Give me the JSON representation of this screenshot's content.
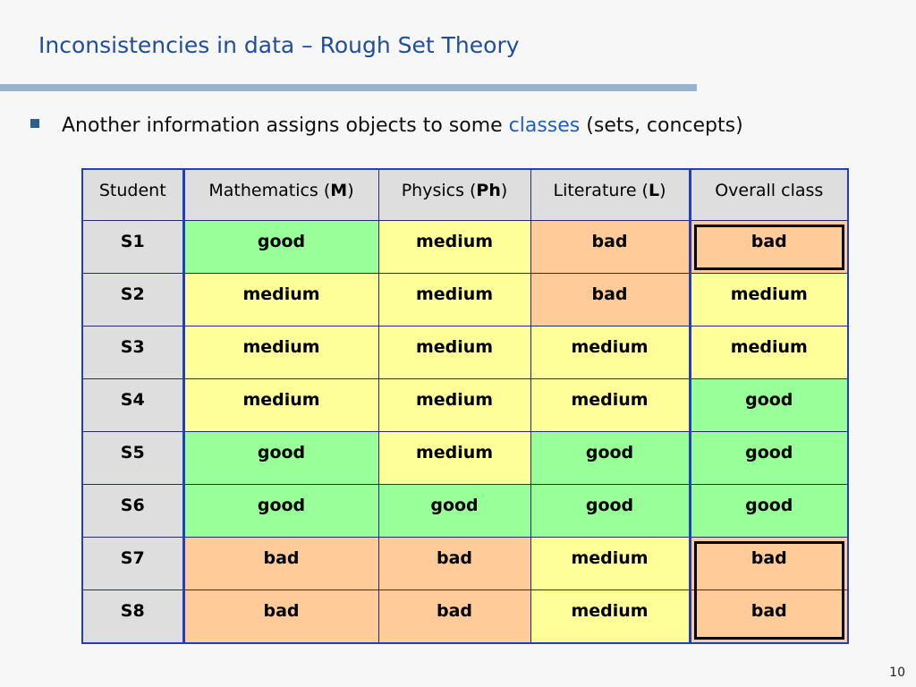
{
  "slide": {
    "title": "Inconsistencies in data – Rough Set Theory",
    "bullet": {
      "before": "Another information assigns objects to some ",
      "highlight": "classes",
      "after": " (sets, concepts)"
    },
    "page_number": "10"
  },
  "table": {
    "headers": [
      {
        "text": "Student"
      },
      {
        "text": "Mathematics (",
        "bold": "M",
        "tail": ")"
      },
      {
        "text": "Physics (",
        "bold": "Ph",
        "tail": ")"
      },
      {
        "text": "Literature (",
        "bold": "L",
        "tail": ")"
      },
      {
        "text": "Overall class"
      }
    ],
    "rows": [
      {
        "student": "S1",
        "values": [
          "good",
          "medium",
          "bad",
          "bad"
        ],
        "boxed": "single"
      },
      {
        "student": "S2",
        "values": [
          "medium",
          "medium",
          "bad",
          "medium"
        ]
      },
      {
        "student": "S3",
        "values": [
          "medium",
          "medium",
          "medium",
          "medium"
        ]
      },
      {
        "student": "S4",
        "values": [
          "medium",
          "medium",
          "medium",
          "good"
        ]
      },
      {
        "student": "S5",
        "values": [
          "good",
          "medium",
          "good",
          "good"
        ]
      },
      {
        "student": "S6",
        "values": [
          "good",
          "good",
          "good",
          "good"
        ]
      },
      {
        "student": "S7",
        "values": [
          "bad",
          "bad",
          "medium",
          "bad"
        ],
        "boxed": "top"
      },
      {
        "student": "S8",
        "values": [
          "bad",
          "bad",
          "medium",
          "bad"
        ],
        "boxed": "bottom"
      }
    ],
    "value_colors": {
      "good": "#99ff99",
      "medium": "#ffff99",
      "bad": "#ffcc99"
    }
  }
}
